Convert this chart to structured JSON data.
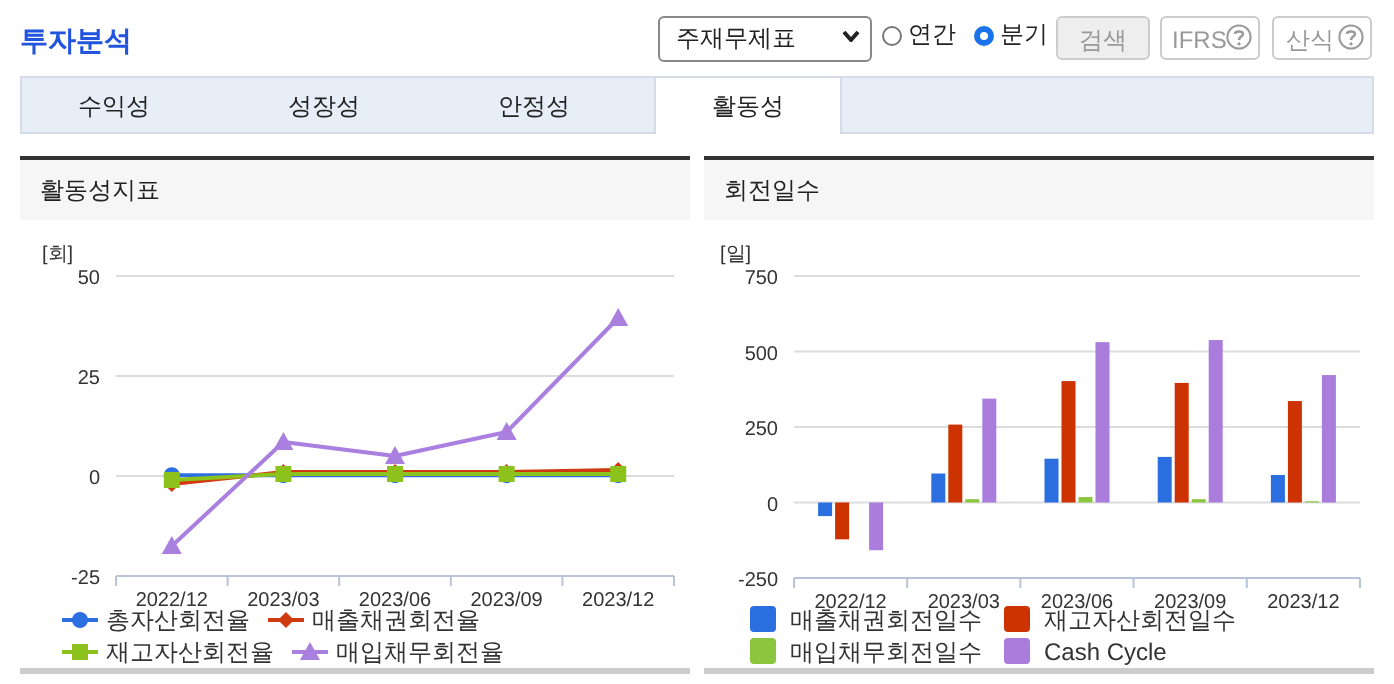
{
  "chart_data": [
    {
      "type": "other",
      "title": "투자분석",
      "annotations": [
        "주재무제표",
        "연간",
        "분기",
        "검색",
        "IFRS",
        "산식",
        "수익성",
        "성장성",
        "안정성",
        "활동성"
      ]
    },
    {
      "type": "line",
      "title": "활동성지표",
      "ylabel": "[회]",
      "categories": [
        "2022/12",
        "2023/03",
        "2023/06",
        "2023/09",
        "2023/12"
      ],
      "ylim": [
        -25,
        50
      ],
      "yticks": [
        -25,
        0,
        25,
        50
      ],
      "grid": "y",
      "legend": "bottom",
      "line_style": "solid",
      "series": [
        {
          "name": "총자산회전율",
          "color": "#2d6fe0",
          "marker": "circle",
          "values": [
            0.2,
            0.2,
            0.2,
            0.2,
            0.2
          ]
        },
        {
          "name": "매출채권회전율",
          "color": "#d03a10",
          "marker": "diamond",
          "values": [
            -2,
            1,
            1,
            1,
            1.5
          ]
        },
        {
          "name": "재고자산회전율",
          "color": "#8cc21b",
          "marker": "square",
          "values": [
            -1,
            0.5,
            0.5,
            0.5,
            0.5
          ]
        },
        {
          "name": "매입채무회전율",
          "color": "#a97fe0",
          "marker": "triangle",
          "values": [
            -17.5,
            8.5,
            5,
            11,
            39.5
          ]
        }
      ]
    },
    {
      "type": "bar",
      "title": "회전일수",
      "ylabel": "[일]",
      "categories": [
        "2022/12",
        "2023/03",
        "2023/06",
        "2023/09",
        "2023/12"
      ],
      "ylim": [
        -250,
        750
      ],
      "yticks": [
        -250,
        0,
        250,
        500,
        750
      ],
      "grid": "y",
      "legend": "bottom",
      "series": [
        {
          "name": "매출채권회전일수",
          "color": "#2a6ee0",
          "values": [
            -45,
            96,
            145,
            151,
            91
          ]
        },
        {
          "name": "재고자산회전일수",
          "color": "#cc3300",
          "values": [
            -122,
            258,
            402,
            396,
            336
          ]
        },
        {
          "name": "매입채무회전일수",
          "color": "#8cc63f",
          "values": [
            0,
            11,
            18,
            11,
            4
          ]
        },
        {
          "name": "Cash Cycle",
          "color": "#aa7ddd",
          "values": [
            -158,
            344,
            531,
            538,
            422
          ]
        }
      ]
    }
  ]
}
